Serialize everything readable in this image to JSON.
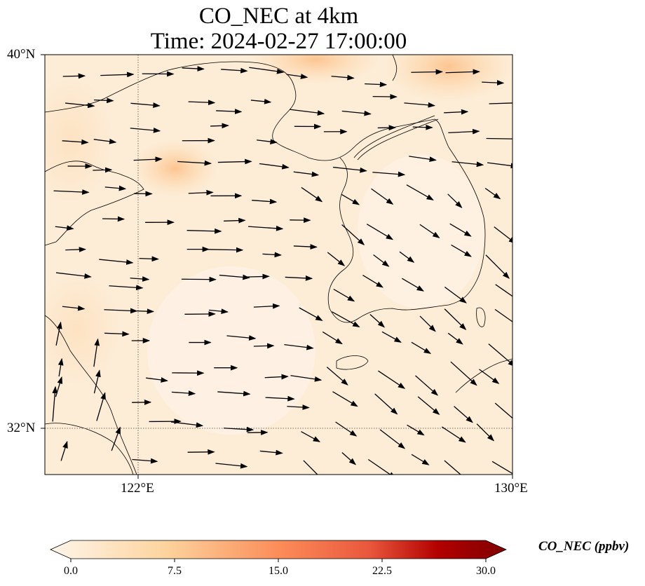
{
  "title": {
    "line1": "CO_NEC at 4km",
    "line2": "Time: 2024-02-27 17:00:00"
  },
  "axes": {
    "lat_labels": [
      "40°N",
      "32°N"
    ],
    "lon_labels": [
      "122°E",
      "130°E"
    ],
    "extent": {
      "lon": [
        120,
        130
      ],
      "lat": [
        31,
        40
      ]
    }
  },
  "colorbar": {
    "label": "CO_NEC (ppbv)",
    "ticks": [
      "0.0",
      "7.5",
      "15.0",
      "22.5",
      "30.0"
    ],
    "range": [
      0,
      30
    ],
    "colors": [
      "#fff5eb",
      "#fdd49e",
      "#fc8d59",
      "#d7301f",
      "#b30000",
      "#7f0000"
    ]
  }
}
